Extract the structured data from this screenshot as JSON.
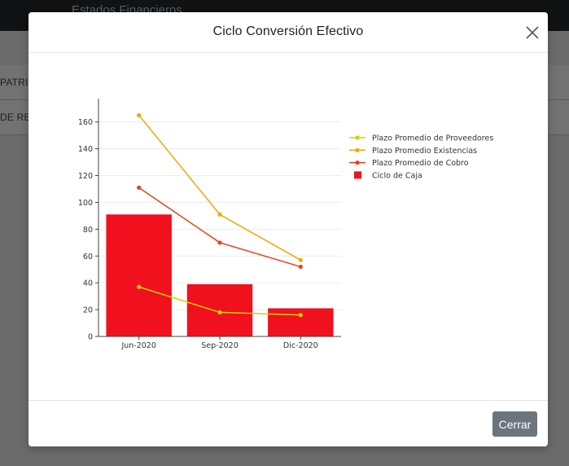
{
  "background": {
    "app_title": "Estados Financieros",
    "rows": [
      "PATRIM",
      "DE RESU"
    ]
  },
  "modal": {
    "title": "Ciclo Conversión Efectivo",
    "close_icon": "close-icon",
    "close_button_label": "Cerrar"
  },
  "chart_data": {
    "type": "bar",
    "categories": [
      "Jun-2020",
      "Sep-2020",
      "Dic-2020"
    ],
    "ylim": [
      0,
      175
    ],
    "yticks": [
      0,
      20,
      40,
      60,
      80,
      100,
      120,
      140,
      160
    ],
    "grid": true,
    "legend_position": "right",
    "series": [
      {
        "name": "Plazo Promedio de Proveedores",
        "type": "line",
        "color": "#c8d400",
        "values": [
          37,
          18,
          16
        ]
      },
      {
        "name": "Plazo Promedio Existencias",
        "type": "line",
        "color": "#f0a800",
        "values": [
          165,
          91,
          57
        ]
      },
      {
        "name": "Plazo Promedio de Cobro",
        "type": "line",
        "color": "#e8401c",
        "values": [
          111,
          70,
          52
        ]
      },
      {
        "name": "Ciclo de Caja",
        "type": "bar",
        "color": "#f0101e",
        "values": [
          91,
          39,
          21
        ]
      }
    ]
  }
}
